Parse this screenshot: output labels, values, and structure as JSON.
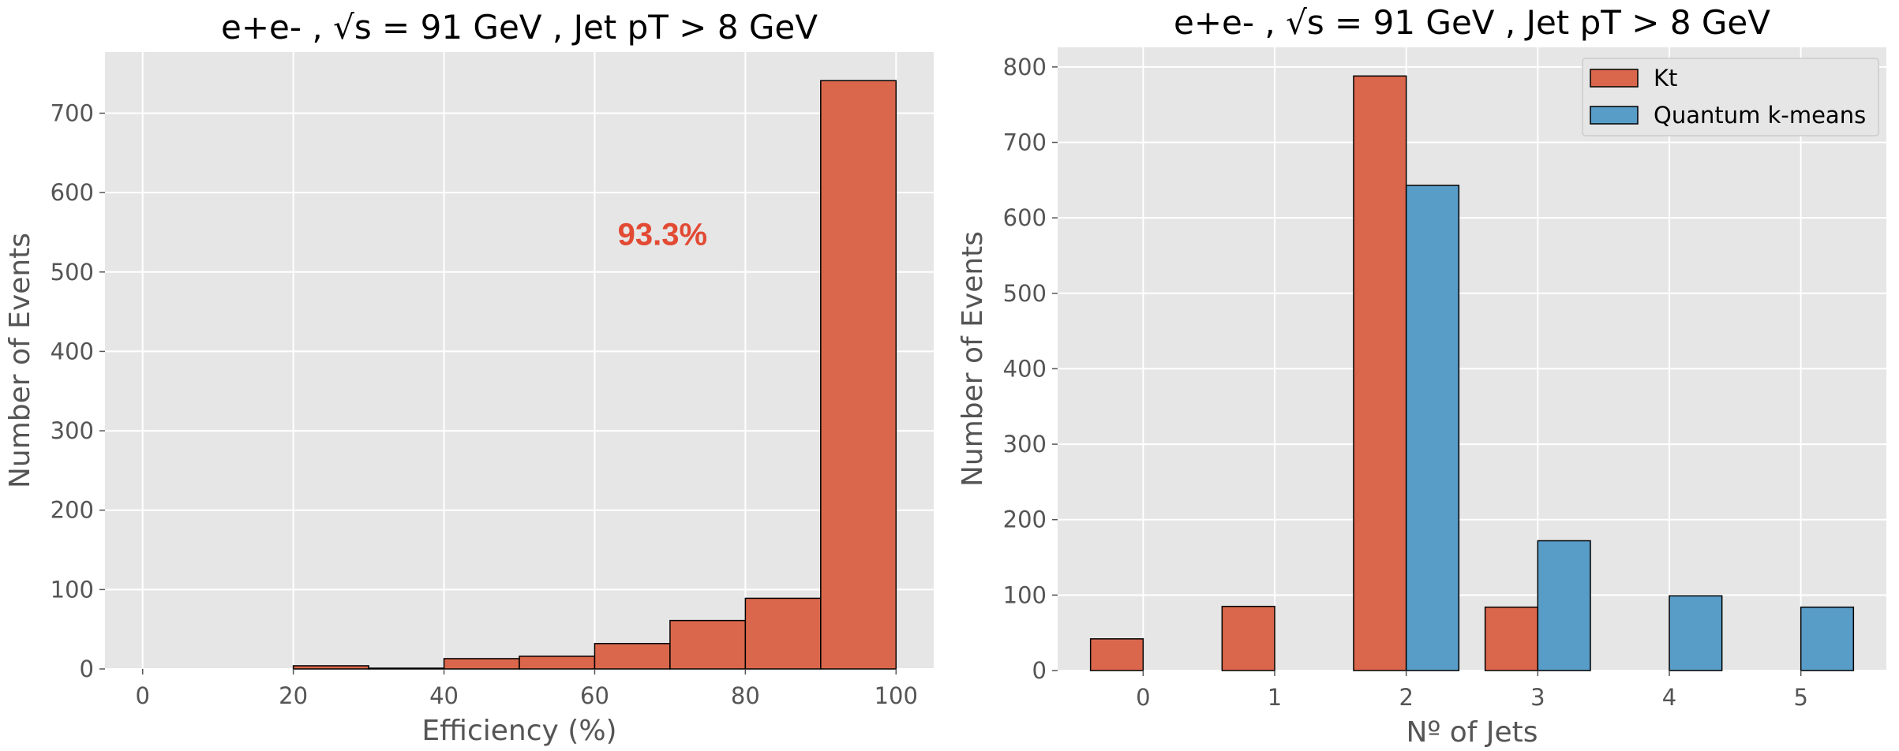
{
  "chart_data": [
    {
      "type": "bar",
      "title": "e+e- , √s = 91 GeV , Jet pT > 8 GeV",
      "xlabel": "Efficiency (%)",
      "ylabel": "Number of Events",
      "xlim": [
        -5,
        105
      ],
      "ylim": [
        0,
        777
      ],
      "xticks": [
        0,
        20,
        40,
        60,
        80,
        100
      ],
      "yticks": [
        0,
        100,
        200,
        300,
        400,
        500,
        600,
        700
      ],
      "grid": true,
      "bins": [
        {
          "x0": 20,
          "x1": 30,
          "value": 4
        },
        {
          "x0": 30,
          "x1": 40,
          "value": 1
        },
        {
          "x0": 40,
          "x1": 50,
          "value": 13
        },
        {
          "x0": 50,
          "x1": 60,
          "value": 16
        },
        {
          "x0": 60,
          "x1": 70,
          "value": 32
        },
        {
          "x0": 70,
          "x1": 80,
          "value": 61
        },
        {
          "x0": 80,
          "x1": 90,
          "value": 89
        },
        {
          "x0": 90,
          "x1": 100,
          "value": 741
        }
      ],
      "color": "#DA674B",
      "annotation": {
        "text": "93.3%",
        "x": 69,
        "y": 548,
        "color": "#E24A33"
      }
    },
    {
      "type": "bar",
      "title": "e+e- , √s = 91 GeV , Jet pT > 8 GeV",
      "xlabel": "Nº of Jets",
      "ylabel": "Number of Events",
      "xlim": [
        -0.65,
        5.65
      ],
      "ylim": [
        0,
        826
      ],
      "xticks": [
        0,
        1,
        2,
        3,
        4,
        5
      ],
      "yticks": [
        0,
        100,
        200,
        300,
        400,
        500,
        600,
        700,
        800
      ],
      "grid": true,
      "legend": "top-right",
      "categories": [
        0,
        1,
        2,
        3,
        4,
        5
      ],
      "series": [
        {
          "name": "Kt",
          "color": "#DA674B",
          "offset": -0.2,
          "values": [
            42,
            85,
            788,
            84,
            0,
            0
          ]
        },
        {
          "name": "Quantum k-means",
          "color": "#589CC8",
          "offset": 0.2,
          "values": [
            0,
            0,
            643,
            172,
            99,
            84
          ]
        }
      ]
    }
  ]
}
